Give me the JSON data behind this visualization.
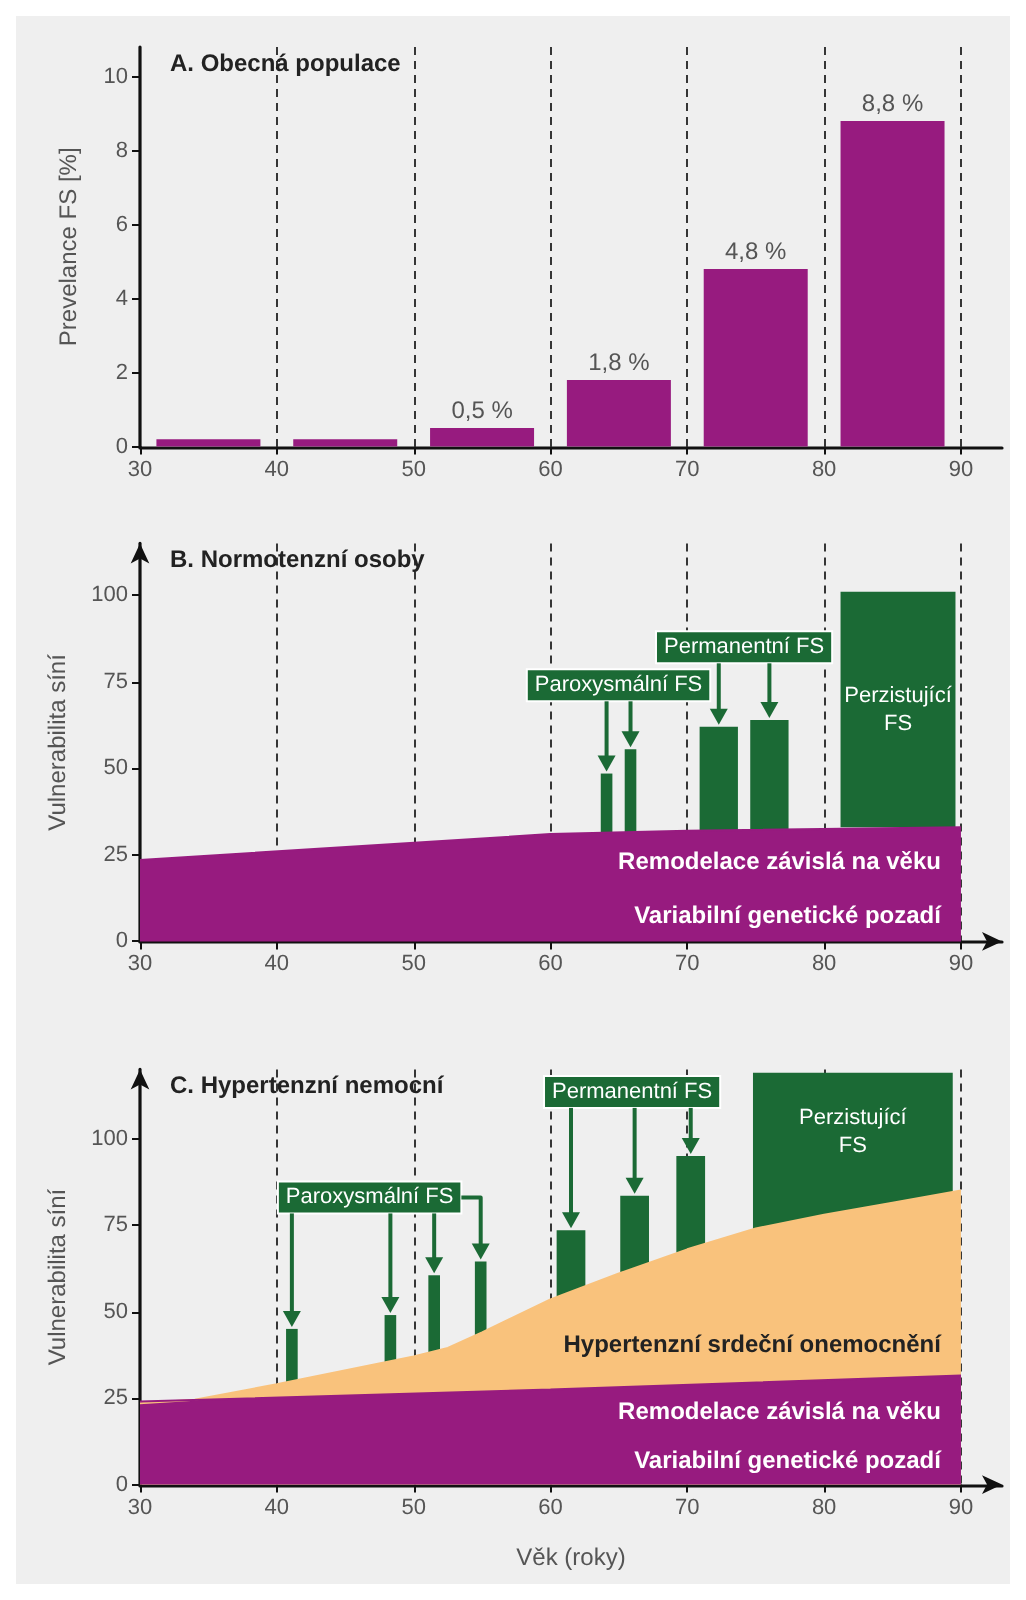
{
  "chart_data": [
    {
      "type": "histogram",
      "title": "A. Obecná populace",
      "ylabel": "Prevelance FS [%]",
      "bins": [
        30,
        40,
        50,
        60,
        70,
        80,
        90
      ],
      "values": [
        0.2,
        0.2,
        0.5,
        1.8,
        4.8,
        8.8
      ],
      "value_labels": [
        null,
        null,
        "0,5 %",
        "1,8 %",
        "4,8 %",
        "8,8 %"
      ],
      "color": "#971b7f",
      "xlim": [
        30,
        93
      ],
      "ylim": [
        0,
        10.8
      ],
      "xticks": [
        30,
        40,
        50,
        60,
        70,
        80,
        90
      ],
      "yticks": [
        0,
        2,
        4,
        6,
        8,
        10
      ],
      "grid": "x"
    },
    {
      "type": "area",
      "title": "B. Normotenzní osoby",
      "ylabel": "Vulnerabilita síní",
      "xlim": [
        30,
        93
      ],
      "ylim": [
        0,
        115
      ],
      "xticks": [
        30,
        40,
        50,
        60,
        70,
        80,
        90
      ],
      "yticks": [
        0,
        25,
        50,
        75,
        100
      ],
      "grid": "x",
      "series": [
        {
          "type": "bar",
          "name": "Paroxysmální FS",
          "color": "#1b6a35",
          "x": [
            64.1,
            65.85
          ],
          "base": [
            31,
            31
          ],
          "values": [
            17.5,
            24.5
          ]
        },
        {
          "type": "bar",
          "name": "Permanentní FS",
          "color": "#1b6a35",
          "x": [
            72.3,
            76
          ],
          "base": [
            32,
            32
          ],
          "values": [
            30,
            32
          ]
        },
        {
          "type": "bar",
          "name": "Perzistující FS",
          "color": "#1b6a35",
          "x": [
            85.4
          ],
          "base": [
            33
          ],
          "values": [
            68
          ]
        },
        {
          "type": "area",
          "color": "#971b7f",
          "x": [
            30,
            60,
            70,
            90
          ],
          "values": [
            23.5,
            31,
            32,
            33
          ]
        }
      ],
      "annotations": [
        "Remodelace závislá na věku",
        "Variabilní genetické pozadí"
      ]
    },
    {
      "type": "area",
      "title": "C. Hypertenzní nemocní",
      "xlabel": "Věk (roky)",
      "ylabel": "Vulnerabilita síní",
      "xlim": [
        30,
        93
      ],
      "ylim": [
        0,
        120
      ],
      "xticks": [
        30,
        40,
        50,
        60,
        70,
        80,
        90
      ],
      "yticks": [
        0,
        25,
        50,
        75,
        100
      ],
      "grid": "x",
      "series": [
        {
          "type": "bar",
          "name": "Paroxysmální FS",
          "color": "#1b6a35",
          "x": [
            41.1,
            48.3,
            51.5,
            54.9
          ],
          "base": [
            29,
            35,
            38,
            43
          ],
          "values": [
            16,
            14,
            22.5,
            21.5
          ]
        },
        {
          "type": "bar",
          "name": "Permanentní FS",
          "color": "#1b6a35",
          "x": [
            61.5,
            66.15,
            70.25
          ],
          "base": [
            54,
            61,
            67
          ],
          "values": [
            19.5,
            22.5,
            28
          ]
        },
        {
          "type": "bar",
          "name": "Perzistující FS",
          "color": "#1b6a35",
          "x": [
            82.1
          ],
          "base": [
            73
          ],
          "values": [
            46
          ]
        },
        {
          "type": "area",
          "name": "Hypertenzní srdeční onemocnění",
          "color": "#f9c27c",
          "x": [
            30,
            34,
            40,
            50,
            52.5,
            55,
            60,
            65,
            70,
            75,
            80,
            85,
            90
          ],
          "values": [
            23.5,
            24.5,
            29,
            37,
            39.5,
            44,
            53.5,
            61,
            68,
            74,
            78,
            81.5,
            85
          ]
        },
        {
          "type": "area",
          "color": "#971b7f",
          "x": [
            30,
            60,
            90
          ],
          "values": [
            24,
            27.5,
            31.5
          ]
        }
      ],
      "annotations": [
        "Remodelace závislá na věku",
        "Variabilní genetické pozadí"
      ]
    }
  ]
}
